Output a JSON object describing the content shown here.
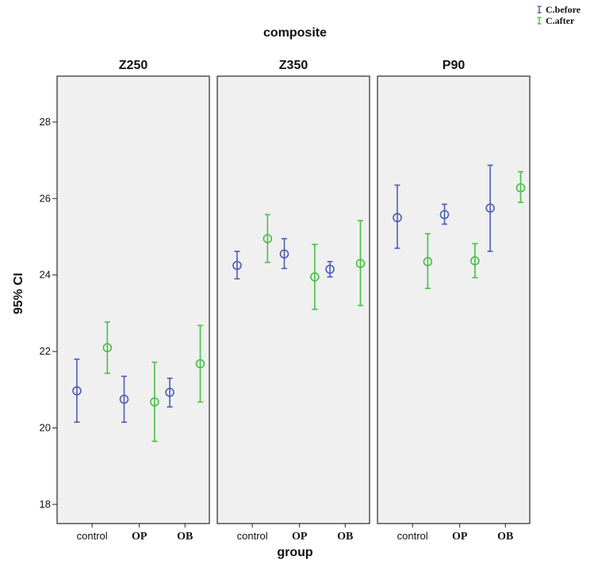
{
  "chart_data": {
    "type": "errorbar",
    "title": "composite",
    "xlabel": "group",
    "ylabel": "95% CI",
    "ylim": [
      17.5,
      29.2
    ],
    "yticks": [
      18,
      20,
      22,
      24,
      26,
      28
    ],
    "categories": [
      "control",
      "OP",
      "OB"
    ],
    "panels": [
      "Z250",
      "Z350",
      "P90"
    ],
    "grid": false,
    "legend_position": "top-right",
    "series": [
      {
        "name": "C.before",
        "color": "#4a5eb5",
        "marker": "circle",
        "data": {
          "Z250": {
            "control": {
              "mean": 20.97,
              "low": 20.15,
              "high": 21.8
            },
            "OP": {
              "mean": 20.75,
              "low": 20.15,
              "high": 21.35
            },
            "OB": {
              "mean": 20.93,
              "low": 20.55,
              "high": 21.3
            }
          },
          "Z350": {
            "control": {
              "mean": 24.25,
              "low": 23.9,
              "high": 24.62
            },
            "OP": {
              "mean": 24.55,
              "low": 24.17,
              "high": 24.95
            },
            "OB": {
              "mean": 24.15,
              "low": 23.95,
              "high": 24.35
            }
          },
          "P90": {
            "control": {
              "mean": 25.5,
              "low": 24.7,
              "high": 26.35
            },
            "OP": {
              "mean": 25.58,
              "low": 25.33,
              "high": 25.85
            },
            "OB": {
              "mean": 25.75,
              "low": 24.62,
              "high": 26.87
            }
          }
        }
      },
      {
        "name": "C.after",
        "color": "#45c045",
        "marker": "circle",
        "data": {
          "Z250": {
            "control": {
              "mean": 22.1,
              "low": 21.43,
              "high": 22.77
            },
            "OP": {
              "mean": 20.68,
              "low": 19.65,
              "high": 21.72
            },
            "OB": {
              "mean": 21.68,
              "low": 20.68,
              "high": 22.68
            }
          },
          "Z350": {
            "control": {
              "mean": 24.95,
              "low": 24.33,
              "high": 25.58
            },
            "OP": {
              "mean": 23.95,
              "low": 23.1,
              "high": 24.8
            },
            "OB": {
              "mean": 24.3,
              "low": 23.2,
              "high": 25.42
            }
          },
          "P90": {
            "control": {
              "mean": 24.35,
              "low": 23.65,
              "high": 25.08
            },
            "OP": {
              "mean": 24.37,
              "low": 23.93,
              "high": 24.82
            },
            "OB": {
              "mean": 26.28,
              "low": 25.9,
              "high": 26.7
            }
          }
        }
      }
    ]
  },
  "style": {
    "panel_bg": "#f0f0f0",
    "panel_border": "#2a2a2a",
    "text_color": "#111111"
  }
}
